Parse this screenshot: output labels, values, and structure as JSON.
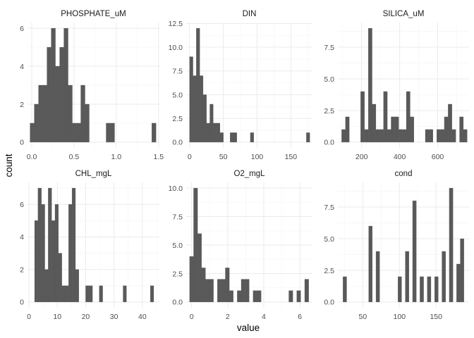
{
  "colors": {
    "bar": "#595959",
    "grid_major": "#ebebeb",
    "grid_minor": "#f5f5f5",
    "background": "#ffffff"
  },
  "chart_data": {
    "type": "bar",
    "subtype": "faceted-histogram",
    "xlabel": "value",
    "ylabel": "count",
    "grid": true,
    "legend": "none",
    "panels": [
      {
        "title": "PHOSPHATE_uM",
        "xlim": [
          -0.05,
          1.51
        ],
        "ylim": [
          -0.3,
          6.3
        ],
        "xticks": [
          0.0,
          0.5,
          1.0,
          1.5
        ],
        "xtick_labels": [
          "0.0",
          "0.5",
          "1.0",
          "1.5"
        ],
        "yticks": [
          0,
          2,
          4,
          6
        ],
        "ytick_labels": [
          "0",
          "2",
          "4",
          "6"
        ],
        "bins": [
          {
            "x0": -0.02,
            "x1": 0.03,
            "count": 1
          },
          {
            "x0": 0.03,
            "x1": 0.08,
            "count": 2
          },
          {
            "x0": 0.08,
            "x1": 0.13,
            "count": 3
          },
          {
            "x0": 0.13,
            "x1": 0.18,
            "count": 3
          },
          {
            "x0": 0.18,
            "x1": 0.23,
            "count": 5
          },
          {
            "x0": 0.23,
            "x1": 0.28,
            "count": 6
          },
          {
            "x0": 0.28,
            "x1": 0.33,
            "count": 4
          },
          {
            "x0": 0.33,
            "x1": 0.38,
            "count": 5
          },
          {
            "x0": 0.38,
            "x1": 0.43,
            "count": 6
          },
          {
            "x0": 0.43,
            "x1": 0.48,
            "count": 3
          },
          {
            "x0": 0.48,
            "x1": 0.53,
            "count": 1
          },
          {
            "x0": 0.53,
            "x1": 0.58,
            "count": 1
          },
          {
            "x0": 0.58,
            "x1": 0.63,
            "count": 3
          },
          {
            "x0": 0.63,
            "x1": 0.68,
            "count": 2
          },
          {
            "x0": 0.88,
            "x1": 0.93,
            "count": 1
          },
          {
            "x0": 0.93,
            "x1": 0.98,
            "count": 1
          },
          {
            "x0": 1.42,
            "x1": 1.47,
            "count": 1
          }
        ]
      },
      {
        "title": "DIN",
        "xlim": [
          -5,
          182
        ],
        "ylim": [
          -0.6,
          12.6
        ],
        "xticks": [
          0,
          50,
          100,
          150
        ],
        "xtick_labels": [
          "0",
          "50",
          "100",
          "150"
        ],
        "yticks": [
          0,
          2.5,
          5,
          7.5,
          10,
          12.5
        ],
        "ytick_labels": [
          "0.0",
          "2.5",
          "5.0",
          "7.5",
          "10.0",
          "12.5"
        ],
        "bins": [
          {
            "x0": 0,
            "x1": 5,
            "count": 9
          },
          {
            "x0": 5,
            "x1": 10,
            "count": 7
          },
          {
            "x0": 10,
            "x1": 15,
            "count": 12
          },
          {
            "x0": 15,
            "x1": 20,
            "count": 7
          },
          {
            "x0": 20,
            "x1": 25,
            "count": 5
          },
          {
            "x0": 25,
            "x1": 30,
            "count": 2
          },
          {
            "x0": 30,
            "x1": 35,
            "count": 4
          },
          {
            "x0": 35,
            "x1": 40,
            "count": 2
          },
          {
            "x0": 40,
            "x1": 45,
            "count": 2
          },
          {
            "x0": 45,
            "x1": 50,
            "count": 1
          },
          {
            "x0": 60,
            "x1": 65,
            "count": 1
          },
          {
            "x0": 65,
            "x1": 70,
            "count": 1
          },
          {
            "x0": 90,
            "x1": 95,
            "count": 1
          },
          {
            "x0": 173,
            "x1": 178,
            "count": 1
          }
        ]
      },
      {
        "title": "SILICA_uM",
        "xlim": [
          75,
          765
        ],
        "ylim": [
          -0.45,
          9.45
        ],
        "xticks": [
          200,
          400,
          600
        ],
        "xtick_labels": [
          "200",
          "400",
          "600"
        ],
        "yticks": [
          0,
          2.5,
          5,
          7.5
        ],
        "ytick_labels": [
          "0.0",
          "2.5",
          "5.0",
          "7.5"
        ],
        "bins": [
          {
            "x0": 95,
            "x1": 115,
            "count": 1
          },
          {
            "x0": 115,
            "x1": 135,
            "count": 2
          },
          {
            "x0": 195,
            "x1": 215,
            "count": 4
          },
          {
            "x0": 215,
            "x1": 235,
            "count": 1
          },
          {
            "x0": 235,
            "x1": 255,
            "count": 9
          },
          {
            "x0": 255,
            "x1": 275,
            "count": 3
          },
          {
            "x0": 275,
            "x1": 295,
            "count": 1
          },
          {
            "x0": 295,
            "x1": 315,
            "count": 1
          },
          {
            "x0": 315,
            "x1": 335,
            "count": 4
          },
          {
            "x0": 335,
            "x1": 355,
            "count": 1
          },
          {
            "x0": 355,
            "x1": 375,
            "count": 2
          },
          {
            "x0": 375,
            "x1": 395,
            "count": 2
          },
          {
            "x0": 395,
            "x1": 415,
            "count": 1
          },
          {
            "x0": 415,
            "x1": 435,
            "count": 1
          },
          {
            "x0": 435,
            "x1": 455,
            "count": 4
          },
          {
            "x0": 455,
            "x1": 475,
            "count": 2
          },
          {
            "x0": 535,
            "x1": 555,
            "count": 1
          },
          {
            "x0": 555,
            "x1": 575,
            "count": 1
          },
          {
            "x0": 595,
            "x1": 615,
            "count": 1
          },
          {
            "x0": 615,
            "x1": 635,
            "count": 1
          },
          {
            "x0": 635,
            "x1": 655,
            "count": 2
          },
          {
            "x0": 655,
            "x1": 675,
            "count": 3
          },
          {
            "x0": 675,
            "x1": 695,
            "count": 1
          },
          {
            "x0": 715,
            "x1": 735,
            "count": 2
          },
          {
            "x0": 735,
            "x1": 755,
            "count": 1
          }
        ]
      },
      {
        "title": "CHL_mgL",
        "xlim": [
          -0.5,
          46
        ],
        "ylim": [
          -0.35,
          7.35
        ],
        "xticks": [
          0,
          10,
          20,
          30,
          40
        ],
        "xtick_labels": [
          "0",
          "10",
          "20",
          "30",
          "40"
        ],
        "yticks": [
          0,
          2,
          4,
          6
        ],
        "ytick_labels": [
          "0",
          "2",
          "4",
          "6"
        ],
        "bins": [
          {
            "x0": 2.0,
            "x1": 3.2,
            "count": 5
          },
          {
            "x0": 3.2,
            "x1": 4.4,
            "count": 7
          },
          {
            "x0": 4.4,
            "x1": 5.6,
            "count": 6
          },
          {
            "x0": 5.6,
            "x1": 6.8,
            "count": 2
          },
          {
            "x0": 6.8,
            "x1": 8.0,
            "count": 7
          },
          {
            "x0": 8.0,
            "x1": 9.2,
            "count": 5
          },
          {
            "x0": 9.2,
            "x1": 10.4,
            "count": 6
          },
          {
            "x0": 10.4,
            "x1": 11.6,
            "count": 3
          },
          {
            "x0": 11.6,
            "x1": 12.8,
            "count": 1
          },
          {
            "x0": 12.8,
            "x1": 14.0,
            "count": 1
          },
          {
            "x0": 14.0,
            "x1": 15.2,
            "count": 6
          },
          {
            "x0": 15.2,
            "x1": 16.4,
            "count": 7
          },
          {
            "x0": 16.4,
            "x1": 17.6,
            "count": 2
          },
          {
            "x0": 20.0,
            "x1": 21.2,
            "count": 1
          },
          {
            "x0": 21.2,
            "x1": 22.4,
            "count": 1
          },
          {
            "x0": 24.8,
            "x1": 26.0,
            "count": 1
          },
          {
            "x0": 33.2,
            "x1": 34.4,
            "count": 1
          },
          {
            "x0": 42.8,
            "x1": 44.0,
            "count": 1
          }
        ]
      },
      {
        "title": "O2_mgL",
        "xlim": [
          -0.3,
          6.7
        ],
        "ylim": [
          -0.5,
          10.5
        ],
        "xticks": [
          0,
          2,
          4,
          6
        ],
        "xtick_labels": [
          "0",
          "2",
          "4",
          "6"
        ],
        "yticks": [
          0,
          2.5,
          5,
          7.5,
          10
        ],
        "ytick_labels": [
          "0.0",
          "2.5",
          "5.0",
          "7.5",
          "10.0"
        ],
        "bins": [
          {
            "x0": -0.11,
            "x1": 0.11,
            "count": 4
          },
          {
            "x0": 0.11,
            "x1": 0.33,
            "count": 10
          },
          {
            "x0": 0.33,
            "x1": 0.55,
            "count": 6
          },
          {
            "x0": 0.55,
            "x1": 0.77,
            "count": 3
          },
          {
            "x0": 0.77,
            "x1": 0.99,
            "count": 2
          },
          {
            "x0": 0.99,
            "x1": 1.21,
            "count": 2
          },
          {
            "x0": 1.43,
            "x1": 1.65,
            "count": 2
          },
          {
            "x0": 1.65,
            "x1": 1.87,
            "count": 2
          },
          {
            "x0": 1.87,
            "x1": 2.09,
            "count": 3
          },
          {
            "x0": 2.09,
            "x1": 2.31,
            "count": 1
          },
          {
            "x0": 2.53,
            "x1": 2.75,
            "count": 1
          },
          {
            "x0": 2.75,
            "x1": 2.97,
            "count": 2
          },
          {
            "x0": 2.97,
            "x1": 3.19,
            "count": 2
          },
          {
            "x0": 3.41,
            "x1": 3.63,
            "count": 1
          },
          {
            "x0": 3.63,
            "x1": 3.85,
            "count": 1
          },
          {
            "x0": 5.39,
            "x1": 5.61,
            "count": 1
          },
          {
            "x0": 5.83,
            "x1": 6.05,
            "count": 1
          },
          {
            "x0": 6.27,
            "x1": 6.49,
            "count": 2
          }
        ]
      },
      {
        "title": "cond",
        "xlim": [
          16,
          195
        ],
        "ylim": [
          -0.45,
          9.45
        ],
        "xticks": [
          50,
          100,
          150
        ],
        "xtick_labels": [
          "50",
          "100",
          "150"
        ],
        "yticks": [
          0,
          2.5,
          5,
          7.5
        ],
        "ytick_labels": [
          "0.0",
          "2.5",
          "5.0",
          "7.5"
        ],
        "bins": [
          {
            "x0": 23,
            "x1": 28,
            "count": 2
          },
          {
            "x0": 58,
            "x1": 63,
            "count": 6
          },
          {
            "x0": 68,
            "x1": 73,
            "count": 4
          },
          {
            "x0": 98,
            "x1": 103,
            "count": 2
          },
          {
            "x0": 108,
            "x1": 113,
            "count": 4
          },
          {
            "x0": 118,
            "x1": 123,
            "count": 8
          },
          {
            "x0": 128,
            "x1": 133,
            "count": 2
          },
          {
            "x0": 138,
            "x1": 143,
            "count": 2
          },
          {
            "x0": 148,
            "x1": 153,
            "count": 2
          },
          {
            "x0": 158,
            "x1": 163,
            "count": 4
          },
          {
            "x0": 168,
            "x1": 173,
            "count": 9
          },
          {
            "x0": 178,
            "x1": 183,
            "count": 3
          },
          {
            "x0": 183,
            "x1": 188,
            "count": 5
          }
        ]
      }
    ]
  }
}
